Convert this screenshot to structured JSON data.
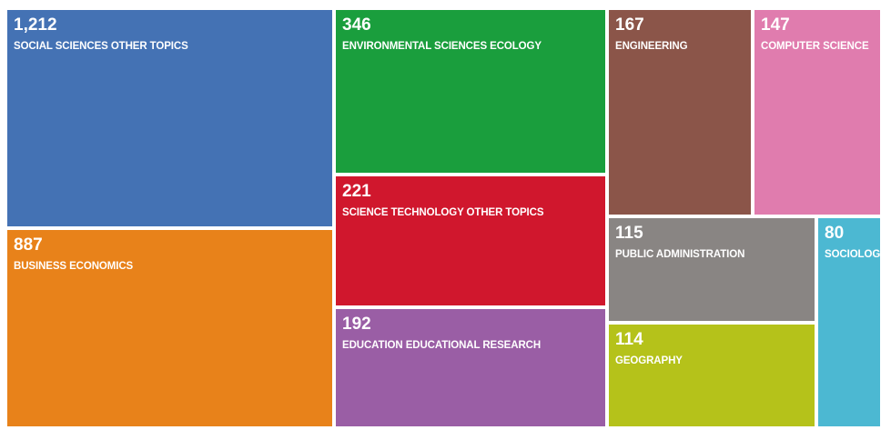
{
  "chart_data": {
    "type": "treemap",
    "items": [
      {
        "label": "SOCIAL SCIENCES OTHER TOPICS",
        "value": 1212,
        "value_label": "1,212",
        "color": "#4472b4"
      },
      {
        "label": "BUSINESS ECONOMICS",
        "value": 887,
        "value_label": "887",
        "color": "#e8821a"
      },
      {
        "label": "ENVIRONMENTAL SCIENCES ECOLOGY",
        "value": 346,
        "value_label": "346",
        "color": "#1a9e3d"
      },
      {
        "label": "SCIENCE TECHNOLOGY OTHER TOPICS",
        "value": 221,
        "value_label": "221",
        "color": "#d0172d"
      },
      {
        "label": "EDUCATION EDUCATIONAL RESEARCH",
        "value": 192,
        "value_label": "192",
        "color": "#9a5ea5"
      },
      {
        "label": "ENGINEERING",
        "value": 167,
        "value_label": "167",
        "color": "#8b5549"
      },
      {
        "label": "COMPUTER SCIENCE",
        "value": 147,
        "value_label": "147",
        "color": "#e07cae"
      },
      {
        "label": "PUBLIC ADMINISTRATION",
        "value": 115,
        "value_label": "115",
        "color": "#898583"
      },
      {
        "label": "GEOGRAPHY",
        "value": 114,
        "value_label": "114",
        "color": "#b5c21a"
      },
      {
        "label": "SOCIOLOGY",
        "value": 80,
        "value_label": "80",
        "color": "#4cb8d2"
      }
    ]
  }
}
